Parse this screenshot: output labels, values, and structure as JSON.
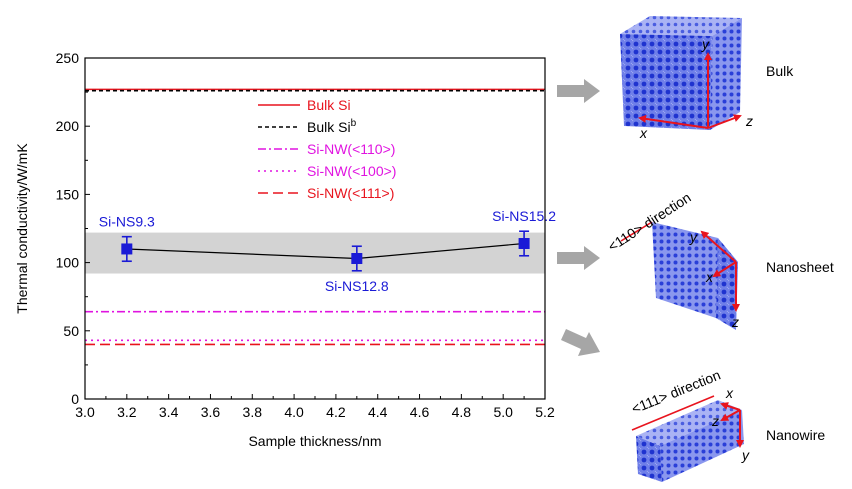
{
  "chart_data": {
    "type": "line",
    "xlabel": "Sample thickness/nm",
    "ylabel": "Thermal conductivity/W/mK",
    "xlim": [
      3.0,
      5.2
    ],
    "ylim": [
      0,
      250
    ],
    "x_ticks": [
      "3.0",
      "3.2",
      "3.4",
      "3.6",
      "3.8",
      "4.0",
      "4.2",
      "4.4",
      "4.6",
      "4.8",
      "5.0",
      "5.2"
    ],
    "x_tick_values": [
      3.0,
      3.2,
      3.4,
      3.6,
      3.8,
      4.0,
      4.2,
      4.4,
      4.6,
      4.8,
      5.0,
      5.2
    ],
    "y_ticks": [
      "0",
      "50",
      "100",
      "150",
      "200",
      "250"
    ],
    "y_tick_values": [
      0,
      50,
      100,
      150,
      200,
      250
    ],
    "grid": false,
    "shaded_band": {
      "y_low": 92,
      "y_high": 122,
      "color": "#d3d3d3"
    },
    "series": [
      {
        "kind": "points",
        "color": "#1a1ad6",
        "points": [
          {
            "x": 3.2,
            "y": 110,
            "err": 9,
            "label": "Si-NS9.3",
            "label_pos": "above"
          },
          {
            "x": 4.3,
            "y": 103,
            "err": 9,
            "label": "Si-NS12.8",
            "label_pos": "below"
          },
          {
            "x": 5.1,
            "y": 114,
            "err": 9,
            "label": "Si-NS15.2",
            "label_pos": "above"
          }
        ]
      }
    ],
    "reference_lines": [
      {
        "legend": "Bulk Si",
        "sup": "",
        "y": 227,
        "color": "#e8141e",
        "dash": "solid"
      },
      {
        "legend": "Bulk Si",
        "sup": "b",
        "y": 226,
        "color": "#000000",
        "dash": "dashed"
      },
      {
        "legend": "Si-NW(<110>)",
        "sup": "",
        "y": 64,
        "color": "#e014e0",
        "dash": "dashdot"
      },
      {
        "legend": "Si-NW(<100>)",
        "sup": "",
        "y": 43,
        "color": "#e014e0",
        "dash": "dotted"
      },
      {
        "legend": "Si-NW(<111>)",
        "sup": "",
        "y": 40,
        "color": "#e8141e",
        "dash": "longdash"
      }
    ],
    "legend": {
      "position": "top-center"
    }
  },
  "structures": [
    {
      "label": "Bulk",
      "axes": [
        "y",
        "x",
        "z"
      ]
    },
    {
      "label": "Nanosheet",
      "direction": "<110> direction",
      "axes": [
        "y",
        "x",
        "z"
      ]
    },
    {
      "label": "Nanowire",
      "direction": "<111> direction",
      "axes": [
        "x",
        "z",
        "y"
      ]
    }
  ],
  "colors": {
    "arrow": "#a6a6a6",
    "atoms": "#2a3fd8",
    "vector": "#e8141e"
  }
}
